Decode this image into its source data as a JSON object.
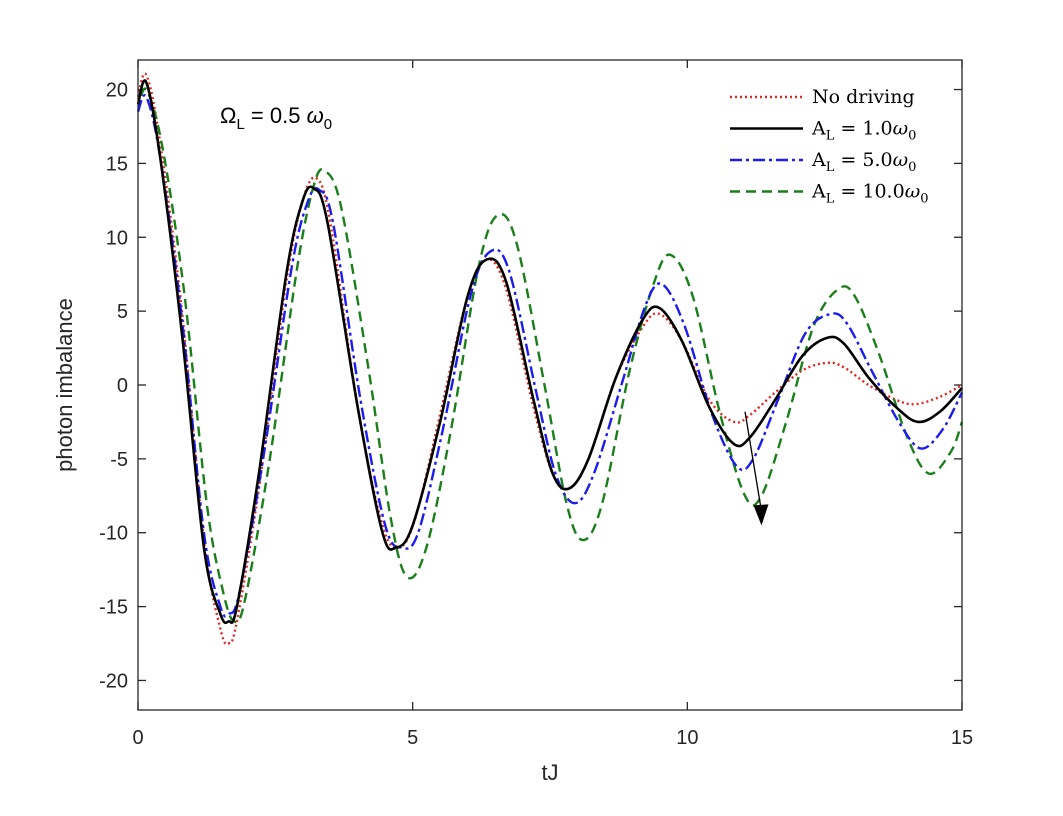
{
  "chart_data": {
    "type": "line",
    "xlabel": "tJ",
    "ylabel": "photon imbalance",
    "xlim": [
      0,
      15
    ],
    "ylim": [
      -22,
      22
    ],
    "xticks": [
      0,
      5,
      10,
      15
    ],
    "yticks": [
      -20,
      -15,
      -10,
      -5,
      0,
      5,
      10,
      15,
      20
    ],
    "xtick_labels": [
      "0",
      "5",
      "10",
      "15"
    ],
    "ytick_labels": [
      "-20",
      "-15",
      "-10",
      "-5",
      "0",
      "5",
      "10",
      "15",
      "20"
    ],
    "grid": false,
    "legend_position": "top-right",
    "annotation": {
      "text": "Ω_L = 0.5 ω_0",
      "base": "Ω",
      "base_sub": "L",
      "eq": " = 0.5 ",
      "omega": "ω",
      "omega_sub": "0"
    },
    "series": [
      {
        "name": "No driving",
        "legend_label": {
          "base": "No driving"
        },
        "color": "#e3261f",
        "style": "dotted",
        "x": [
          0,
          0.15,
          0.4,
          0.8,
          1.2,
          1.5,
          1.65,
          1.8,
          2.2,
          2.7,
          3.0,
          3.25,
          3.5,
          4.0,
          4.45,
          4.75,
          5.05,
          5.5,
          6.0,
          6.35,
          6.7,
          7.2,
          7.55,
          7.85,
          8.2,
          8.7,
          9.2,
          9.5,
          9.9,
          10.4,
          10.85,
          11.15,
          11.6,
          12.1,
          12.55,
          12.85,
          13.3,
          13.8,
          14.15,
          14.6,
          15.0
        ],
        "y": [
          19.5,
          21.0,
          16.5,
          5.0,
          -10.5,
          -16.5,
          -17.5,
          -16.0,
          -7.0,
          7.0,
          12.5,
          14.0,
          11.0,
          -1.5,
          -9.5,
          -11.0,
          -9.0,
          -2.0,
          6.0,
          8.5,
          6.5,
          -1.5,
          -6.0,
          -7.0,
          -5.0,
          0.5,
          4.0,
          4.8,
          3.0,
          -1.0,
          -2.5,
          -2.0,
          -0.5,
          1.0,
          1.5,
          1.2,
          0.0,
          -1.0,
          -1.3,
          -0.8,
          0.0
        ]
      },
      {
        "name": "A_L = 1.0ω_0",
        "legend_label": {
          "base": "A",
          "sub": "L",
          "eq": " = 1.0",
          "omega": "ω",
          "omega_sub": "0"
        },
        "color": "#000000",
        "style": "solid",
        "x": [
          0,
          0.15,
          0.4,
          0.8,
          1.2,
          1.5,
          1.65,
          1.8,
          2.2,
          2.7,
          3.0,
          3.2,
          3.45,
          4.0,
          4.45,
          4.7,
          5.0,
          5.5,
          6.0,
          6.35,
          6.7,
          7.2,
          7.55,
          7.85,
          8.2,
          8.7,
          9.2,
          9.5,
          9.9,
          10.4,
          10.85,
          11.15,
          11.6,
          12.1,
          12.55,
          12.85,
          13.3,
          13.8,
          14.2,
          14.6,
          15.0
        ],
        "y": [
          19.0,
          20.5,
          15.5,
          3.5,
          -11.0,
          -15.5,
          -16.0,
          -15.0,
          -6.0,
          7.5,
          12.5,
          13.3,
          11.0,
          -1.5,
          -10.0,
          -11.0,
          -9.5,
          -2.5,
          6.0,
          8.5,
          7.0,
          -1.0,
          -6.0,
          -7.0,
          -5.0,
          0.5,
          4.5,
          5.2,
          3.0,
          -1.5,
          -4.0,
          -3.5,
          -1.0,
          2.0,
          3.2,
          2.8,
          0.5,
          -1.5,
          -2.5,
          -1.8,
          -0.2
        ]
      },
      {
        "name": "A_L = 5.0ω_0",
        "legend_label": {
          "base": "A",
          "sub": "L",
          "eq": " = 5.0",
          "omega": "ω",
          "omega_sub": "0"
        },
        "color": "#1c1cf0",
        "style": "dashdot",
        "x": [
          0,
          0.15,
          0.4,
          0.8,
          1.2,
          1.5,
          1.65,
          1.85,
          2.3,
          2.8,
          3.1,
          3.3,
          3.55,
          4.05,
          4.5,
          4.8,
          5.1,
          5.55,
          6.05,
          6.4,
          6.75,
          7.25,
          7.6,
          7.95,
          8.3,
          8.8,
          9.25,
          9.55,
          9.95,
          10.45,
          10.9,
          11.2,
          11.65,
          12.15,
          12.6,
          12.9,
          13.35,
          13.85,
          14.25,
          14.65,
          15.0
        ],
        "y": [
          18.5,
          19.5,
          15.5,
          4.5,
          -10.0,
          -15.0,
          -15.5,
          -14.0,
          -4.5,
          8.0,
          12.5,
          13.2,
          11.0,
          -1.0,
          -9.5,
          -11.0,
          -10.0,
          -3.0,
          6.0,
          9.0,
          7.8,
          -0.5,
          -6.0,
          -8.0,
          -6.0,
          0.0,
          5.5,
          6.8,
          4.0,
          -2.0,
          -5.5,
          -5.0,
          -1.0,
          3.5,
          4.8,
          4.2,
          1.0,
          -2.5,
          -4.3,
          -3.0,
          -0.5
        ]
      },
      {
        "name": "A_L = 10.0ω_0",
        "legend_label": {
          "base": "A",
          "sub": "L",
          "eq": " = 10.0",
          "omega": "ω",
          "omega_sub": "0"
        },
        "color": "#1a7f1a",
        "style": "dashed",
        "x": [
          0,
          0.15,
          0.45,
          0.85,
          1.25,
          1.55,
          1.75,
          1.95,
          2.4,
          2.9,
          3.2,
          3.4,
          3.7,
          4.2,
          4.6,
          4.9,
          5.25,
          5.7,
          6.2,
          6.55,
          6.9,
          7.4,
          7.8,
          8.1,
          8.45,
          8.95,
          9.4,
          9.7,
          10.1,
          10.6,
          11.05,
          11.35,
          11.8,
          12.3,
          12.75,
          13.05,
          13.5,
          14.0,
          14.4,
          14.8,
          15.0
        ],
        "y": [
          18.5,
          20.0,
          16.0,
          6.0,
          -8.0,
          -14.0,
          -16.0,
          -14.5,
          -5.0,
          8.0,
          13.5,
          14.5,
          12.0,
          1.0,
          -9.0,
          -13.0,
          -11.0,
          -3.0,
          8.0,
          11.5,
          9.5,
          0.0,
          -8.0,
          -10.5,
          -8.0,
          1.0,
          7.0,
          8.8,
          6.0,
          -2.0,
          -7.5,
          -7.5,
          -2.5,
          4.0,
          6.5,
          6.0,
          2.0,
          -3.5,
          -6.0,
          -4.5,
          -2.5
        ]
      }
    ]
  }
}
